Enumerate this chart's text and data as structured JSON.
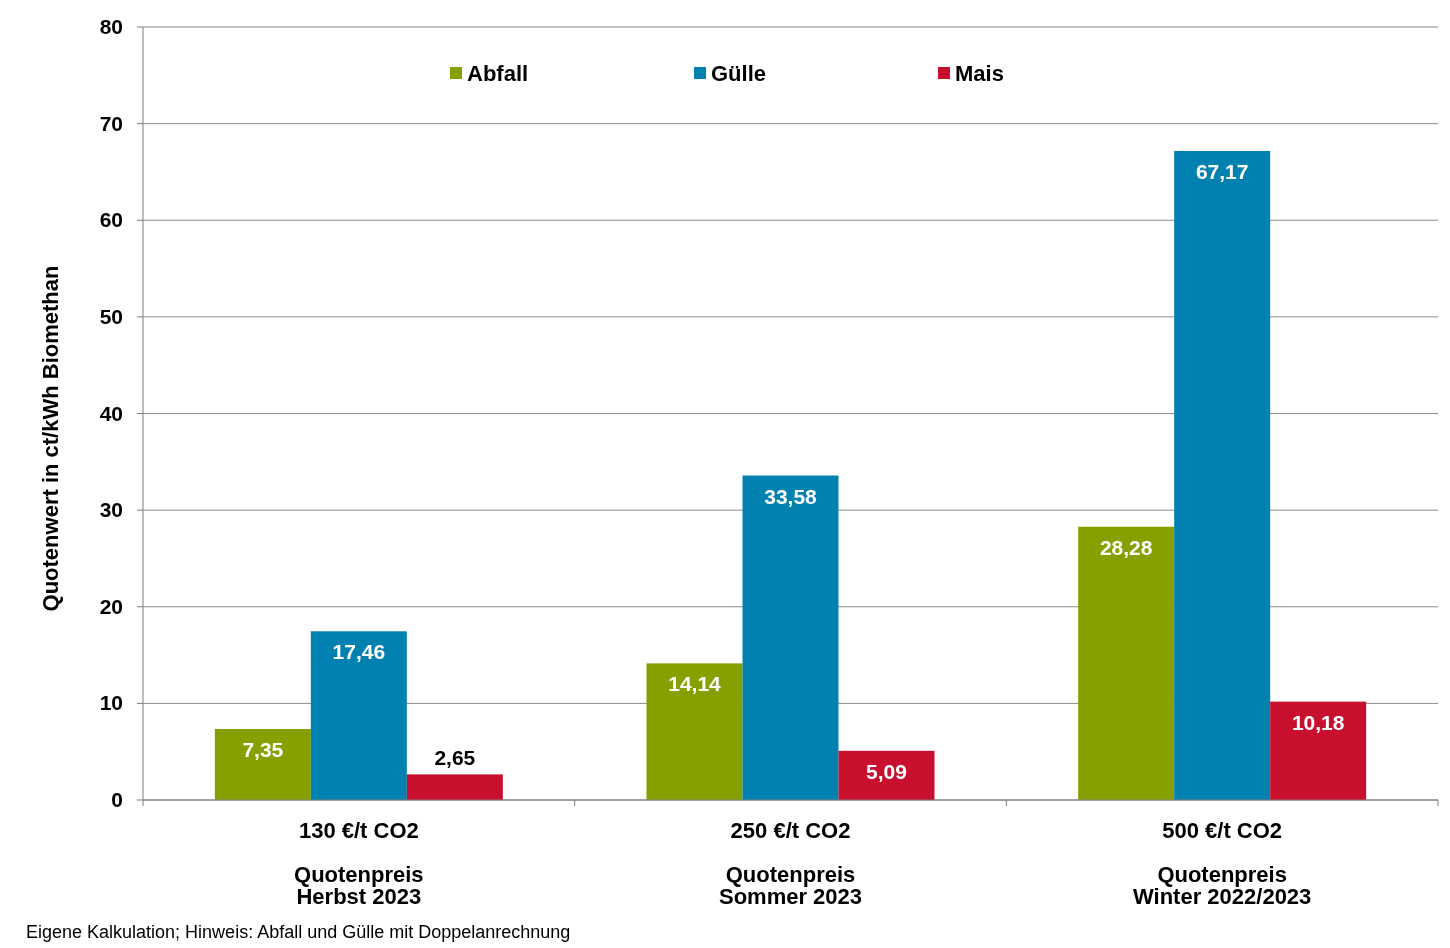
{
  "chart_data": {
    "type": "bar",
    "ylabel": "Quotenwert  in ct/kWh Biomethan",
    "categories": [
      "130 €/t CO2\n\nQuotenpreis\nHerbst 2023",
      "250 €/t CO2\n\nQuotenpreis\nSommer 2023",
      "500 €/t CO2\n\nQuotenpreis\nWinter 2022/2023"
    ],
    "series": [
      {
        "name": "Abfall",
        "color": "#86a000",
        "values": [
          7.35,
          14.14,
          28.28
        ],
        "value_labels": [
          "7,35",
          "14,14",
          "28,28"
        ]
      },
      {
        "name": "Gülle",
        "color": "#0081b0",
        "values": [
          17.46,
          33.58,
          67.17
        ],
        "value_labels": [
          "17,46",
          "33,58",
          "67,17"
        ]
      },
      {
        "name": "Mais",
        "color": "#c8102e",
        "values": [
          2.65,
          5.09,
          10.18
        ],
        "value_labels": [
          "2,65",
          "5,09",
          "10,18"
        ]
      }
    ],
    "ylim": [
      0,
      80
    ],
    "yticks": [
      0,
      10,
      20,
      30,
      40,
      50,
      60,
      70,
      80
    ],
    "grid": "y",
    "legend": "top",
    "annotations": [
      "Eigene Kalkulation; Hinweis: Abfall und  Gülle mit Doppelanrechnung"
    ]
  }
}
